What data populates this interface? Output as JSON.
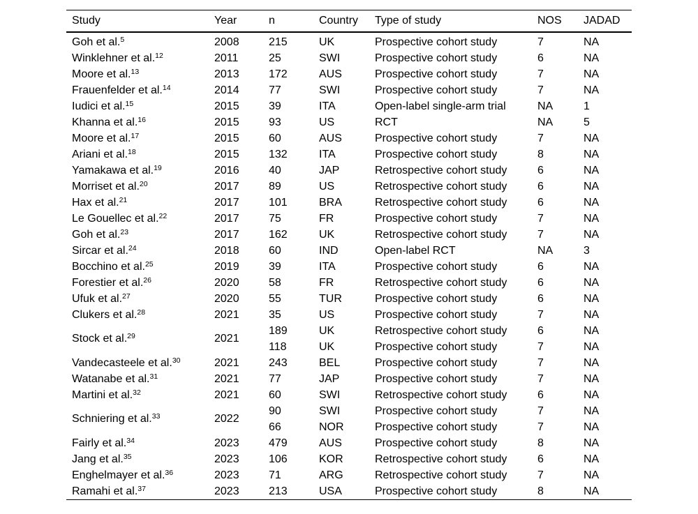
{
  "page": {
    "background_color": "#ffffff",
    "text_color": "#000000",
    "rule_color": "#000000"
  },
  "table": {
    "columns": [
      {
        "key": "study",
        "label": "Study"
      },
      {
        "key": "year",
        "label": "Year"
      },
      {
        "key": "n",
        "label": "n"
      },
      {
        "key": "country",
        "label": "Country"
      },
      {
        "key": "type",
        "label": "Type of study"
      },
      {
        "key": "nos",
        "label": "NOS"
      },
      {
        "key": "jadad",
        "label": "JADAD"
      }
    ],
    "rows": [
      {
        "study": "Goh et al.",
        "ref": "5",
        "year": "2008",
        "entries": [
          {
            "n": "215",
            "country": "UK",
            "type": "Prospective cohort study",
            "nos": "7",
            "jadad": "NA"
          }
        ]
      },
      {
        "study": "Winklehner et al.",
        "ref": "12",
        "year": "2011",
        "entries": [
          {
            "n": "25",
            "country": "SWI",
            "type": "Prospective cohort study",
            "nos": "6",
            "jadad": "NA"
          }
        ]
      },
      {
        "study": "Moore et al.",
        "ref": "13",
        "year": "2013",
        "entries": [
          {
            "n": "172",
            "country": "AUS",
            "type": "Prospective cohort study",
            "nos": "7",
            "jadad": "NA"
          }
        ]
      },
      {
        "study": "Frauenfelder et al.",
        "ref": "14",
        "year": "2014",
        "entries": [
          {
            "n": "77",
            "country": "SWI",
            "type": "Prospective cohort study",
            "nos": "7",
            "jadad": "NA"
          }
        ]
      },
      {
        "study": "Iudici et al.",
        "ref": "15",
        "year": "2015",
        "entries": [
          {
            "n": "39",
            "country": "ITA",
            "type": "Open-label single-arm trial",
            "nos": "NA",
            "jadad": "1"
          }
        ]
      },
      {
        "study": "Khanna et al.",
        "ref": "16",
        "year": "2015",
        "entries": [
          {
            "n": "93",
            "country": "US",
            "type": "RCT",
            "nos": "NA",
            "jadad": "5"
          }
        ]
      },
      {
        "study": "Moore et al.",
        "ref": "17",
        "year": "2015",
        "entries": [
          {
            "n": "60",
            "country": "AUS",
            "type": "Prospective cohort study",
            "nos": "7",
            "jadad": "NA"
          }
        ]
      },
      {
        "study": "Ariani et al.",
        "ref": "18",
        "year": "2015",
        "entries": [
          {
            "n": "132",
            "country": "ITA",
            "type": "Prospective cohort study",
            "nos": "8",
            "jadad": "NA"
          }
        ]
      },
      {
        "study": "Yamakawa et al.",
        "ref": "19",
        "year": "2016",
        "entries": [
          {
            "n": "40",
            "country": "JAP",
            "type": "Retrospective cohort study",
            "nos": "6",
            "jadad": "NA"
          }
        ]
      },
      {
        "study": "Morriset et al.",
        "ref": "20",
        "year": "2017",
        "entries": [
          {
            "n": "89",
            "country": "US",
            "type": "Retrospective cohort study",
            "nos": "6",
            "jadad": "NA"
          }
        ]
      },
      {
        "study": "Hax et al.",
        "ref": "21",
        "year": "2017",
        "entries": [
          {
            "n": "101",
            "country": "BRA",
            "type": "Retrospective cohort study",
            "nos": "6",
            "jadad": "NA"
          }
        ]
      },
      {
        "study": "Le Gouellec et al.",
        "ref": "22",
        "year": "2017",
        "entries": [
          {
            "n": "75",
            "country": "FR",
            "type": "Prospective cohort study",
            "nos": "7",
            "jadad": "NA"
          }
        ]
      },
      {
        "study": "Goh et al.",
        "ref": "23",
        "year": "2017",
        "entries": [
          {
            "n": "162",
            "country": "UK",
            "type": "Retrospective cohort study",
            "nos": "7",
            "jadad": "NA"
          }
        ]
      },
      {
        "study": "Sircar et al.",
        "ref": "24",
        "year": "2018",
        "entries": [
          {
            "n": "60",
            "country": "IND",
            "type": "Open-label RCT",
            "nos": "NA",
            "jadad": "3"
          }
        ]
      },
      {
        "study": "Bocchino et al.",
        "ref": "25",
        "year": "2019",
        "entries": [
          {
            "n": "39",
            "country": "ITA",
            "type": "Prospective cohort study",
            "nos": "6",
            "jadad": "NA"
          }
        ]
      },
      {
        "study": "Forestier et al.",
        "ref": "26",
        "year": "2020",
        "entries": [
          {
            "n": "58",
            "country": "FR",
            "type": "Retrospective cohort study",
            "nos": "6",
            "jadad": "NA"
          }
        ]
      },
      {
        "study": "Ufuk et al.",
        "ref": "27",
        "year": "2020",
        "entries": [
          {
            "n": "55",
            "country": "TUR",
            "type": "Prospective cohort study",
            "nos": "6",
            "jadad": "NA"
          }
        ]
      },
      {
        "study": "Clukers et al.",
        "ref": "28",
        "year": "2021",
        "entries": [
          {
            "n": "35",
            "country": "US",
            "type": "Prospective cohort study",
            "nos": "7",
            "jadad": "NA"
          }
        ]
      },
      {
        "study": "Stock et al.",
        "ref": "29",
        "year": "2021",
        "entries": [
          {
            "n": "189",
            "country": "UK",
            "type": "Retrospective cohort study",
            "nos": "6",
            "jadad": "NA"
          },
          {
            "n": "118",
            "country": "UK",
            "type": "Prospective cohort study",
            "nos": "7",
            "jadad": "NA"
          }
        ]
      },
      {
        "study": "Vandecasteele et al.",
        "ref": "30",
        "year": "2021",
        "entries": [
          {
            "n": "243",
            "country": "BEL",
            "type": "Prospective cohort study",
            "nos": "7",
            "jadad": "NA"
          }
        ]
      },
      {
        "study": "Watanabe et al.",
        "ref": "31",
        "year": "2021",
        "entries": [
          {
            "n": "77",
            "country": "JAP",
            "type": "Prospective cohort study",
            "nos": "7",
            "jadad": "NA"
          }
        ]
      },
      {
        "study": "Martini et al.",
        "ref": "32",
        "year": "2021",
        "entries": [
          {
            "n": "60",
            "country": "SWI",
            "type": "Retrospective cohort study",
            "nos": "6",
            "jadad": "NA"
          }
        ]
      },
      {
        "study": "Schniering et al.",
        "ref": "33",
        "year": "2022",
        "entries": [
          {
            "n": "90",
            "country": "SWI",
            "type": "Prospective cohort study",
            "nos": "7",
            "jadad": "NA"
          },
          {
            "n": "66",
            "country": "NOR",
            "type": "Prospective cohort study",
            "nos": "7",
            "jadad": "NA"
          }
        ]
      },
      {
        "study": "Fairly et al.",
        "ref": "34",
        "year": "2023",
        "entries": [
          {
            "n": "479",
            "country": "AUS",
            "type": "Prospective cohort study",
            "nos": "8",
            "jadad": "NA"
          }
        ]
      },
      {
        "study": "Jang et al.",
        "ref": "35",
        "year": "2023",
        "entries": [
          {
            "n": "106",
            "country": "KOR",
            "type": "Retrospective cohort study",
            "nos": "6",
            "jadad": "NA"
          }
        ]
      },
      {
        "study": "Enghelmayer et al.",
        "ref": "36",
        "year": "2023",
        "entries": [
          {
            "n": "71",
            "country": "ARG",
            "type": "Retrospective cohort study",
            "nos": "7",
            "jadad": "NA"
          }
        ]
      },
      {
        "study": "Ramahi et al.",
        "ref": "37",
        "year": "2023",
        "entries": [
          {
            "n": "213",
            "country": "USA",
            "type": "Prospective cohort study",
            "nos": "8",
            "jadad": "NA"
          }
        ]
      }
    ]
  }
}
